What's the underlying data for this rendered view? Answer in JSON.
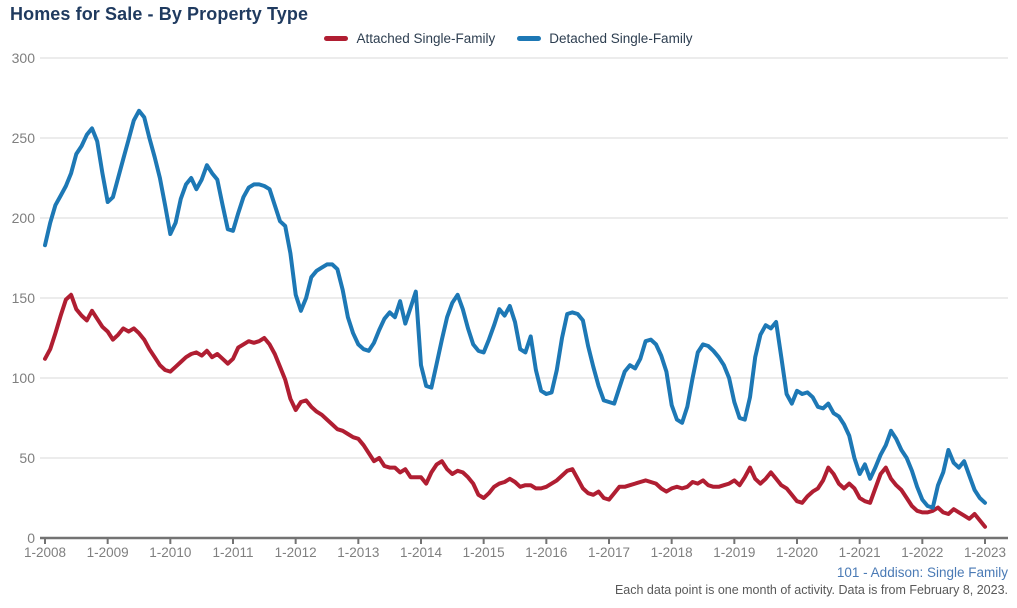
{
  "header": {
    "title": "Homes for Sale - By Property Type"
  },
  "legend": {
    "items": [
      {
        "label": "Attached Single-Family",
        "color": "#b01e32"
      },
      {
        "label": "Detached Single-Family",
        "color": "#1d78b5"
      }
    ]
  },
  "footer": {
    "link": "101 - Addison: Single Family",
    "note": "Each data point is one month of activity. Data is from February 8, 2023."
  },
  "chart_data": {
    "type": "line",
    "title": "Homes for Sale - By Property Type",
    "xlabel": "",
    "ylabel": "",
    "x_unit": "month",
    "x_start": "2008-01",
    "x_end": "2023-01",
    "points_per_series": 181,
    "x_tick_labels": [
      "1-2008",
      "1-2009",
      "1-2010",
      "1-2011",
      "1-2012",
      "1-2013",
      "1-2014",
      "1-2015",
      "1-2016",
      "1-2017",
      "1-2018",
      "1-2019",
      "1-2020",
      "1-2021",
      "1-2022",
      "1-2023"
    ],
    "y_ticks": [
      0,
      50,
      100,
      150,
      200,
      250,
      300
    ],
    "ylim": [
      0,
      300
    ],
    "grid": "horizontal",
    "legend_position": "top-center",
    "colors": {
      "gridline": "#d9d9d9",
      "axis_line": "#737373",
      "tick_label": "#7f7f7f"
    },
    "series": [
      {
        "name": "Attached Single-Family",
        "color": "#b01e32",
        "values": [
          112,
          118,
          128,
          139,
          149,
          152,
          143,
          139,
          136,
          142,
          137,
          132,
          129,
          124,
          127,
          131,
          129,
          131,
          128,
          124,
          118,
          113,
          108,
          105,
          104,
          107,
          110,
          113,
          115,
          116,
          114,
          117,
          113,
          115,
          112,
          109,
          112,
          119,
          121,
          123,
          122,
          123,
          125,
          121,
          115,
          107,
          99,
          87,
          80,
          85,
          86,
          82,
          79,
          77,
          74,
          71,
          68,
          67,
          65,
          63,
          62,
          58,
          53,
          48,
          50,
          45,
          44,
          44,
          41,
          43,
          38,
          38,
          38,
          34,
          41,
          46,
          48,
          43,
          40,
          42,
          41,
          38,
          34,
          27,
          25,
          28,
          32,
          34,
          35,
          37,
          35,
          32,
          33,
          33,
          31,
          31,
          32,
          34,
          36,
          39,
          42,
          43,
          37,
          31,
          28,
          27,
          29,
          25,
          24,
          28,
          32,
          32,
          33,
          34,
          35,
          36,
          35,
          34,
          31,
          29,
          31,
          32,
          31,
          32,
          35,
          34,
          36,
          33,
          32,
          32,
          33,
          34,
          36,
          33,
          38,
          44,
          37,
          34,
          37,
          41,
          37,
          33,
          31,
          27,
          23,
          22,
          26,
          29,
          31,
          36,
          44,
          40,
          34,
          31,
          34,
          31,
          25,
          23,
          22,
          31,
          40,
          44,
          37,
          33,
          30,
          25,
          20,
          17,
          16,
          16,
          17,
          19,
          16,
          15,
          18,
          16,
          14,
          12,
          15,
          11,
          7
        ]
      },
      {
        "name": "Detached Single-Family",
        "color": "#1d78b5",
        "values": [
          183,
          197,
          208,
          214,
          220,
          228,
          240,
          245,
          252,
          256,
          248,
          228,
          210,
          213,
          225,
          237,
          249,
          261,
          267,
          263,
          250,
          238,
          225,
          208,
          190,
          197,
          212,
          221,
          225,
          218,
          224,
          233,
          228,
          224,
          208,
          193,
          192,
          203,
          213,
          219,
          221,
          221,
          220,
          218,
          208,
          198,
          195,
          178,
          152,
          142,
          150,
          163,
          167,
          169,
          171,
          171,
          168,
          155,
          138,
          128,
          121,
          118,
          117,
          122,
          130,
          137,
          141,
          138,
          148,
          134,
          144,
          154,
          108,
          95,
          94,
          109,
          124,
          138,
          147,
          152,
          143,
          131,
          121,
          117,
          116,
          124,
          133,
          143,
          139,
          145,
          135,
          118,
          116,
          126,
          105,
          92,
          90,
          91,
          105,
          125,
          140,
          141,
          140,
          136,
          120,
          107,
          95,
          86,
          85,
          84,
          94,
          104,
          108,
          106,
          112,
          123,
          124,
          121,
          114,
          104,
          83,
          74,
          72,
          82,
          100,
          116,
          121,
          120,
          117,
          113,
          108,
          100,
          85,
          75,
          74,
          88,
          113,
          127,
          133,
          131,
          135,
          113,
          90,
          84,
          92,
          90,
          91,
          88,
          82,
          81,
          84,
          78,
          76,
          71,
          64,
          50,
          40,
          46,
          37,
          44,
          52,
          58,
          67,
          62,
          55,
          50,
          42,
          32,
          24,
          20,
          19,
          33,
          41,
          55,
          47,
          44,
          48,
          39,
          30,
          25,
          22
        ]
      }
    ]
  }
}
